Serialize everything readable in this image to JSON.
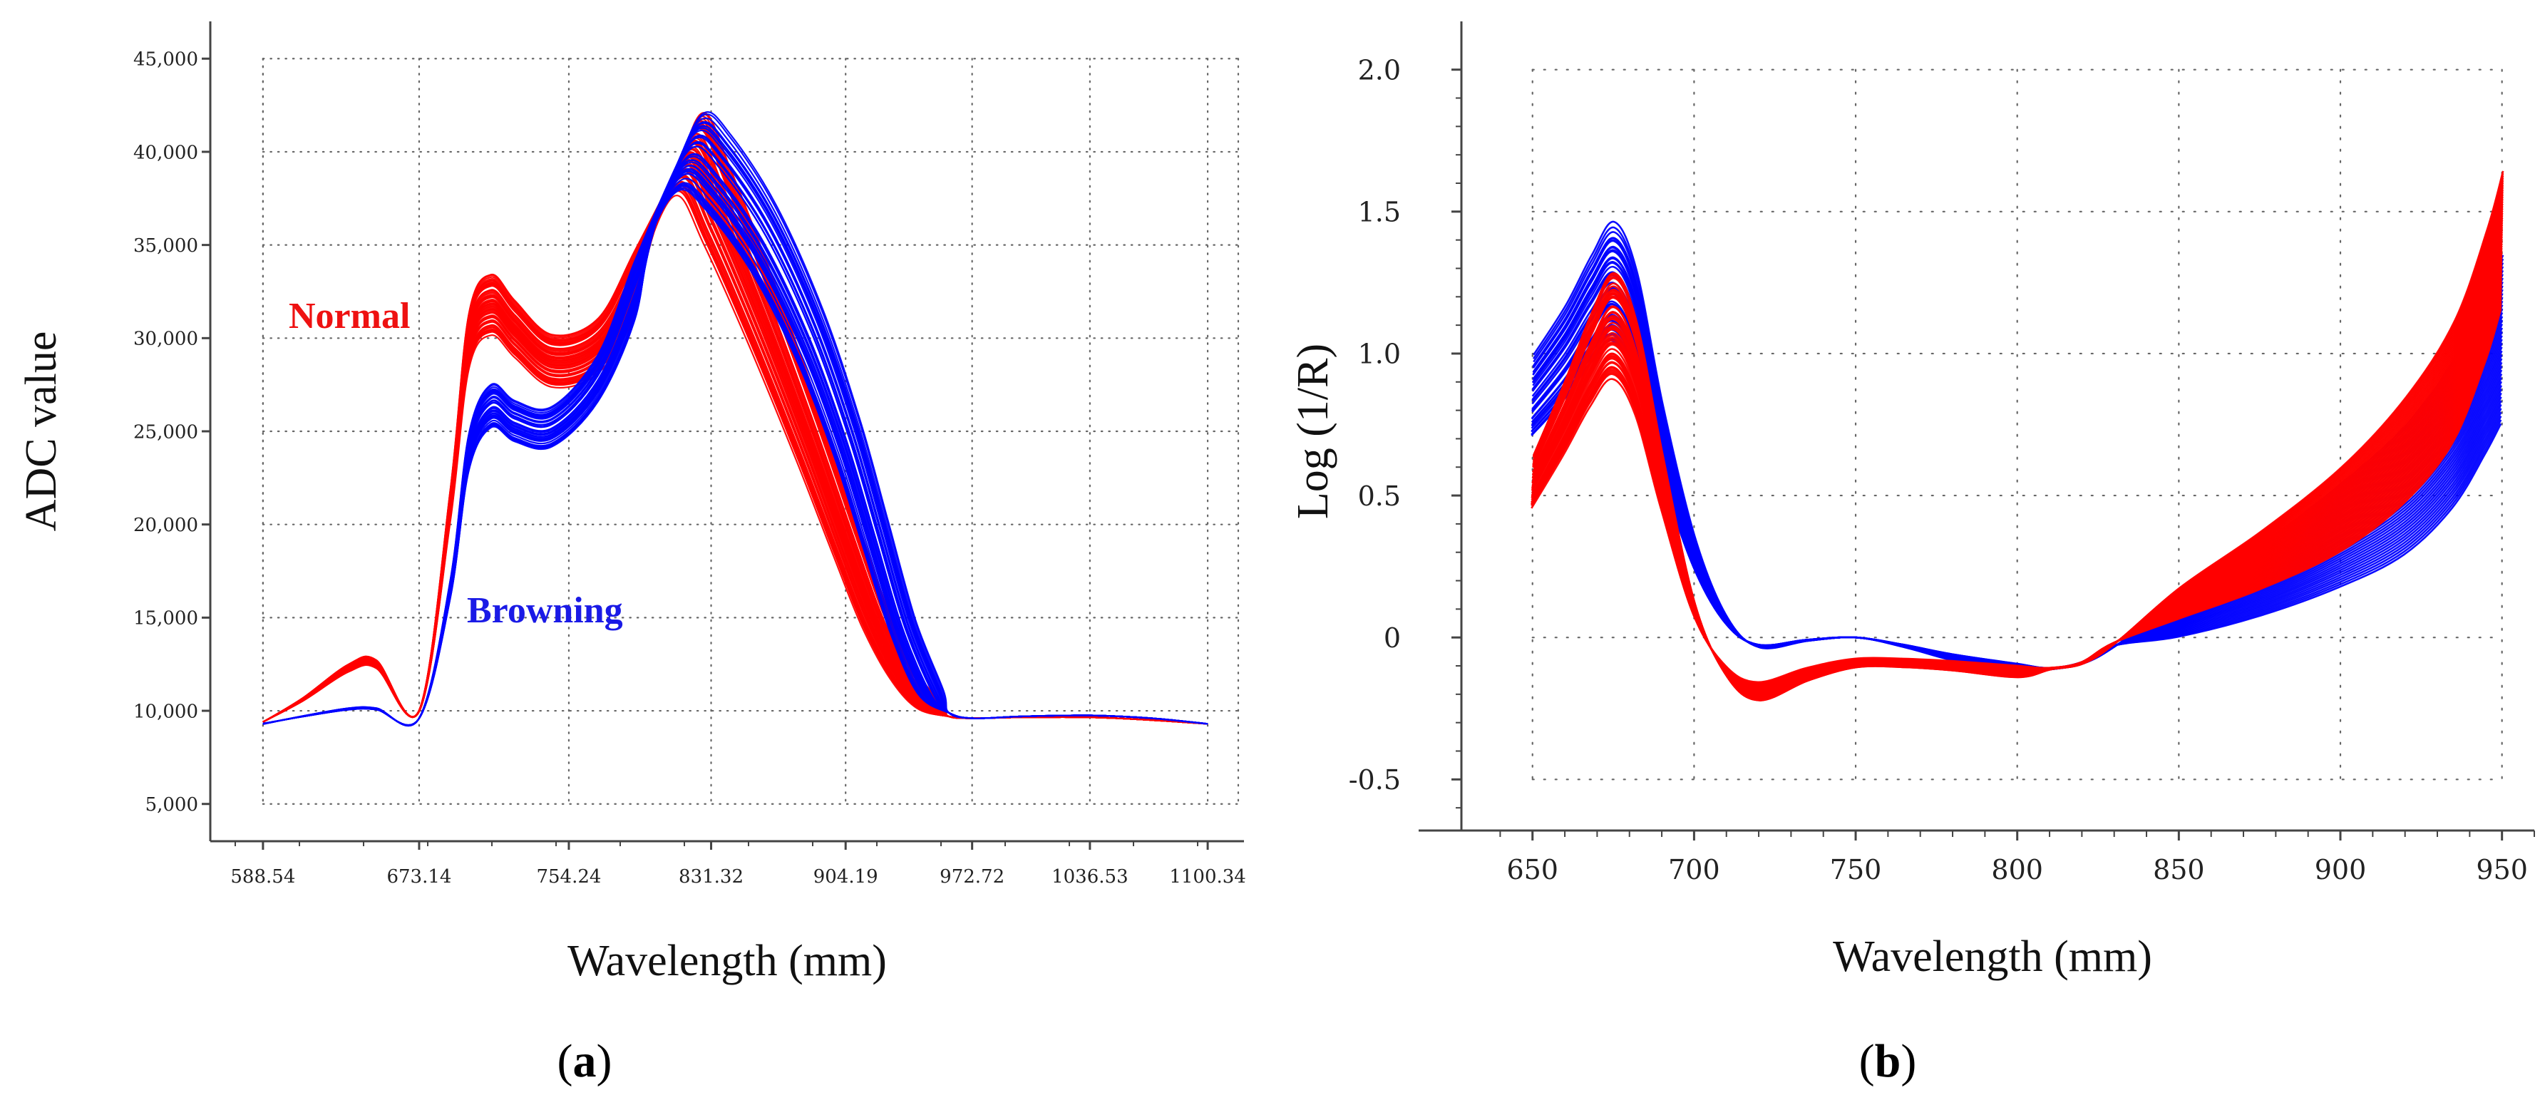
{
  "figure": {
    "panels": [
      {
        "letter": "a",
        "open": "(",
        "close": ")"
      },
      {
        "letter": "b",
        "open": "(",
        "close": ")"
      }
    ]
  },
  "chart_data": [
    {
      "type": "line",
      "panel": "a",
      "xlabel": "Wavelength (mm)",
      "ylabel": "ADC value",
      "xlim": [
        560,
        1120
      ],
      "ylim": [
        3000,
        47000
      ],
      "grid": true,
      "x_ticks": [
        588.54,
        673.14,
        754.24,
        831.32,
        904.19,
        972.72,
        1036.53,
        1100.34
      ],
      "x_tick_labels": [
        "588.54",
        "673.14",
        "754.24",
        "831.32",
        "904.19",
        "972.72",
        "1036.53",
        "1100.34"
      ],
      "y_ticks": [
        5000,
        10000,
        15000,
        20000,
        25000,
        30000,
        35000,
        40000,
        45000
      ],
      "y_tick_labels": [
        "5,000",
        "10,000",
        "15,000",
        "20,000",
        "25,000",
        "30,000",
        "35,000",
        "40,000",
        "45,000"
      ],
      "annotations": [
        {
          "text": "Normal",
          "color": "#ee1111"
        },
        {
          "text": "Browning",
          "color": "#1a1ae6"
        }
      ],
      "series": [
        {
          "name": "Normal",
          "color": "#ff0000",
          "count": 60,
          "x": [
            588.54,
            610,
            635,
            650,
            673.14,
            690,
            700,
            712,
            725,
            745,
            770,
            790,
            805,
            820,
            835,
            860,
            885,
            905,
            920,
            935,
            950,
            960,
            972.72,
            1000,
            1036.53,
            1070,
            1100.34
          ],
          "y": [
            9400,
            10600,
            12300,
            12500,
            10000,
            21000,
            29800,
            31800,
            30500,
            28800,
            29600,
            33000,
            37000,
            39900,
            37000,
            31000,
            24500,
            19000,
            15000,
            12000,
            10200,
            9700,
            9600,
            9650,
            9650,
            9500,
            9300
          ]
        },
        {
          "name": "Browning",
          "color": "#0000ff",
          "count": 45,
          "x": [
            588.54,
            610,
            635,
            650,
            673.14,
            690,
            700,
            712,
            725,
            745,
            770,
            790,
            805,
            820,
            835,
            860,
            885,
            905,
            920,
            935,
            950,
            960,
            972.72,
            1000,
            1036.53,
            1070,
            1100.34
          ],
          "y": [
            9300,
            9700,
            10100,
            10100,
            9600,
            16500,
            23800,
            26300,
            25500,
            25200,
            27800,
            32500,
            37200,
            39900,
            38800,
            35200,
            30000,
            24500,
            19500,
            14500,
            11000,
            9900,
            9600,
            9700,
            9750,
            9600,
            9300
          ]
        }
      ]
    },
    {
      "type": "line",
      "panel": "b",
      "xlabel": "Wavelength (mm)",
      "ylabel": "Log (1/R)",
      "xlim": [
        628,
        960
      ],
      "ylim": [
        -0.68,
        2.17
      ],
      "grid": true,
      "x_ticks": [
        650,
        700,
        750,
        800,
        850,
        900,
        950
      ],
      "x_tick_labels": [
        "650",
        "700",
        "750",
        "800",
        "850",
        "900",
        "950"
      ],
      "y_ticks": [
        -0.5,
        0,
        0.5,
        1.0,
        1.5,
        2.0
      ],
      "y_tick_labels": [
        "-0.5",
        "0",
        "0.5",
        "1.0",
        "1.5",
        "2.0"
      ],
      "series": [
        {
          "name": "Browning",
          "color": "#0000ff",
          "count": 45,
          "x": [
            650,
            660,
            668,
            675,
            682,
            690,
            700,
            710,
            720,
            735,
            750,
            765,
            780,
            800,
            810,
            820,
            830,
            850,
            875,
            900,
            920,
            935,
            945,
            950
          ],
          "y": [
            0.85,
            1.0,
            1.15,
            1.25,
            1.1,
            0.7,
            0.3,
            0.06,
            -0.03,
            -0.01,
            0.0,
            -0.03,
            -0.07,
            -0.11,
            -0.11,
            -0.09,
            -0.03,
            0.07,
            0.2,
            0.36,
            0.52,
            0.72,
            0.93,
            1.05
          ]
        },
        {
          "name": "Normal",
          "color": "#ff0000",
          "count": 60,
          "x": [
            650,
            660,
            668,
            675,
            682,
            690,
            700,
            710,
            720,
            735,
            750,
            765,
            780,
            800,
            810,
            820,
            830,
            850,
            875,
            900,
            920,
            935,
            945,
            950
          ],
          "y": [
            0.55,
            0.78,
            0.98,
            1.1,
            0.95,
            0.55,
            0.1,
            -0.12,
            -0.19,
            -0.13,
            -0.09,
            -0.09,
            -0.1,
            -0.12,
            -0.11,
            -0.09,
            -0.02,
            0.12,
            0.27,
            0.45,
            0.66,
            0.9,
            1.2,
            1.4
          ]
        }
      ]
    }
  ]
}
